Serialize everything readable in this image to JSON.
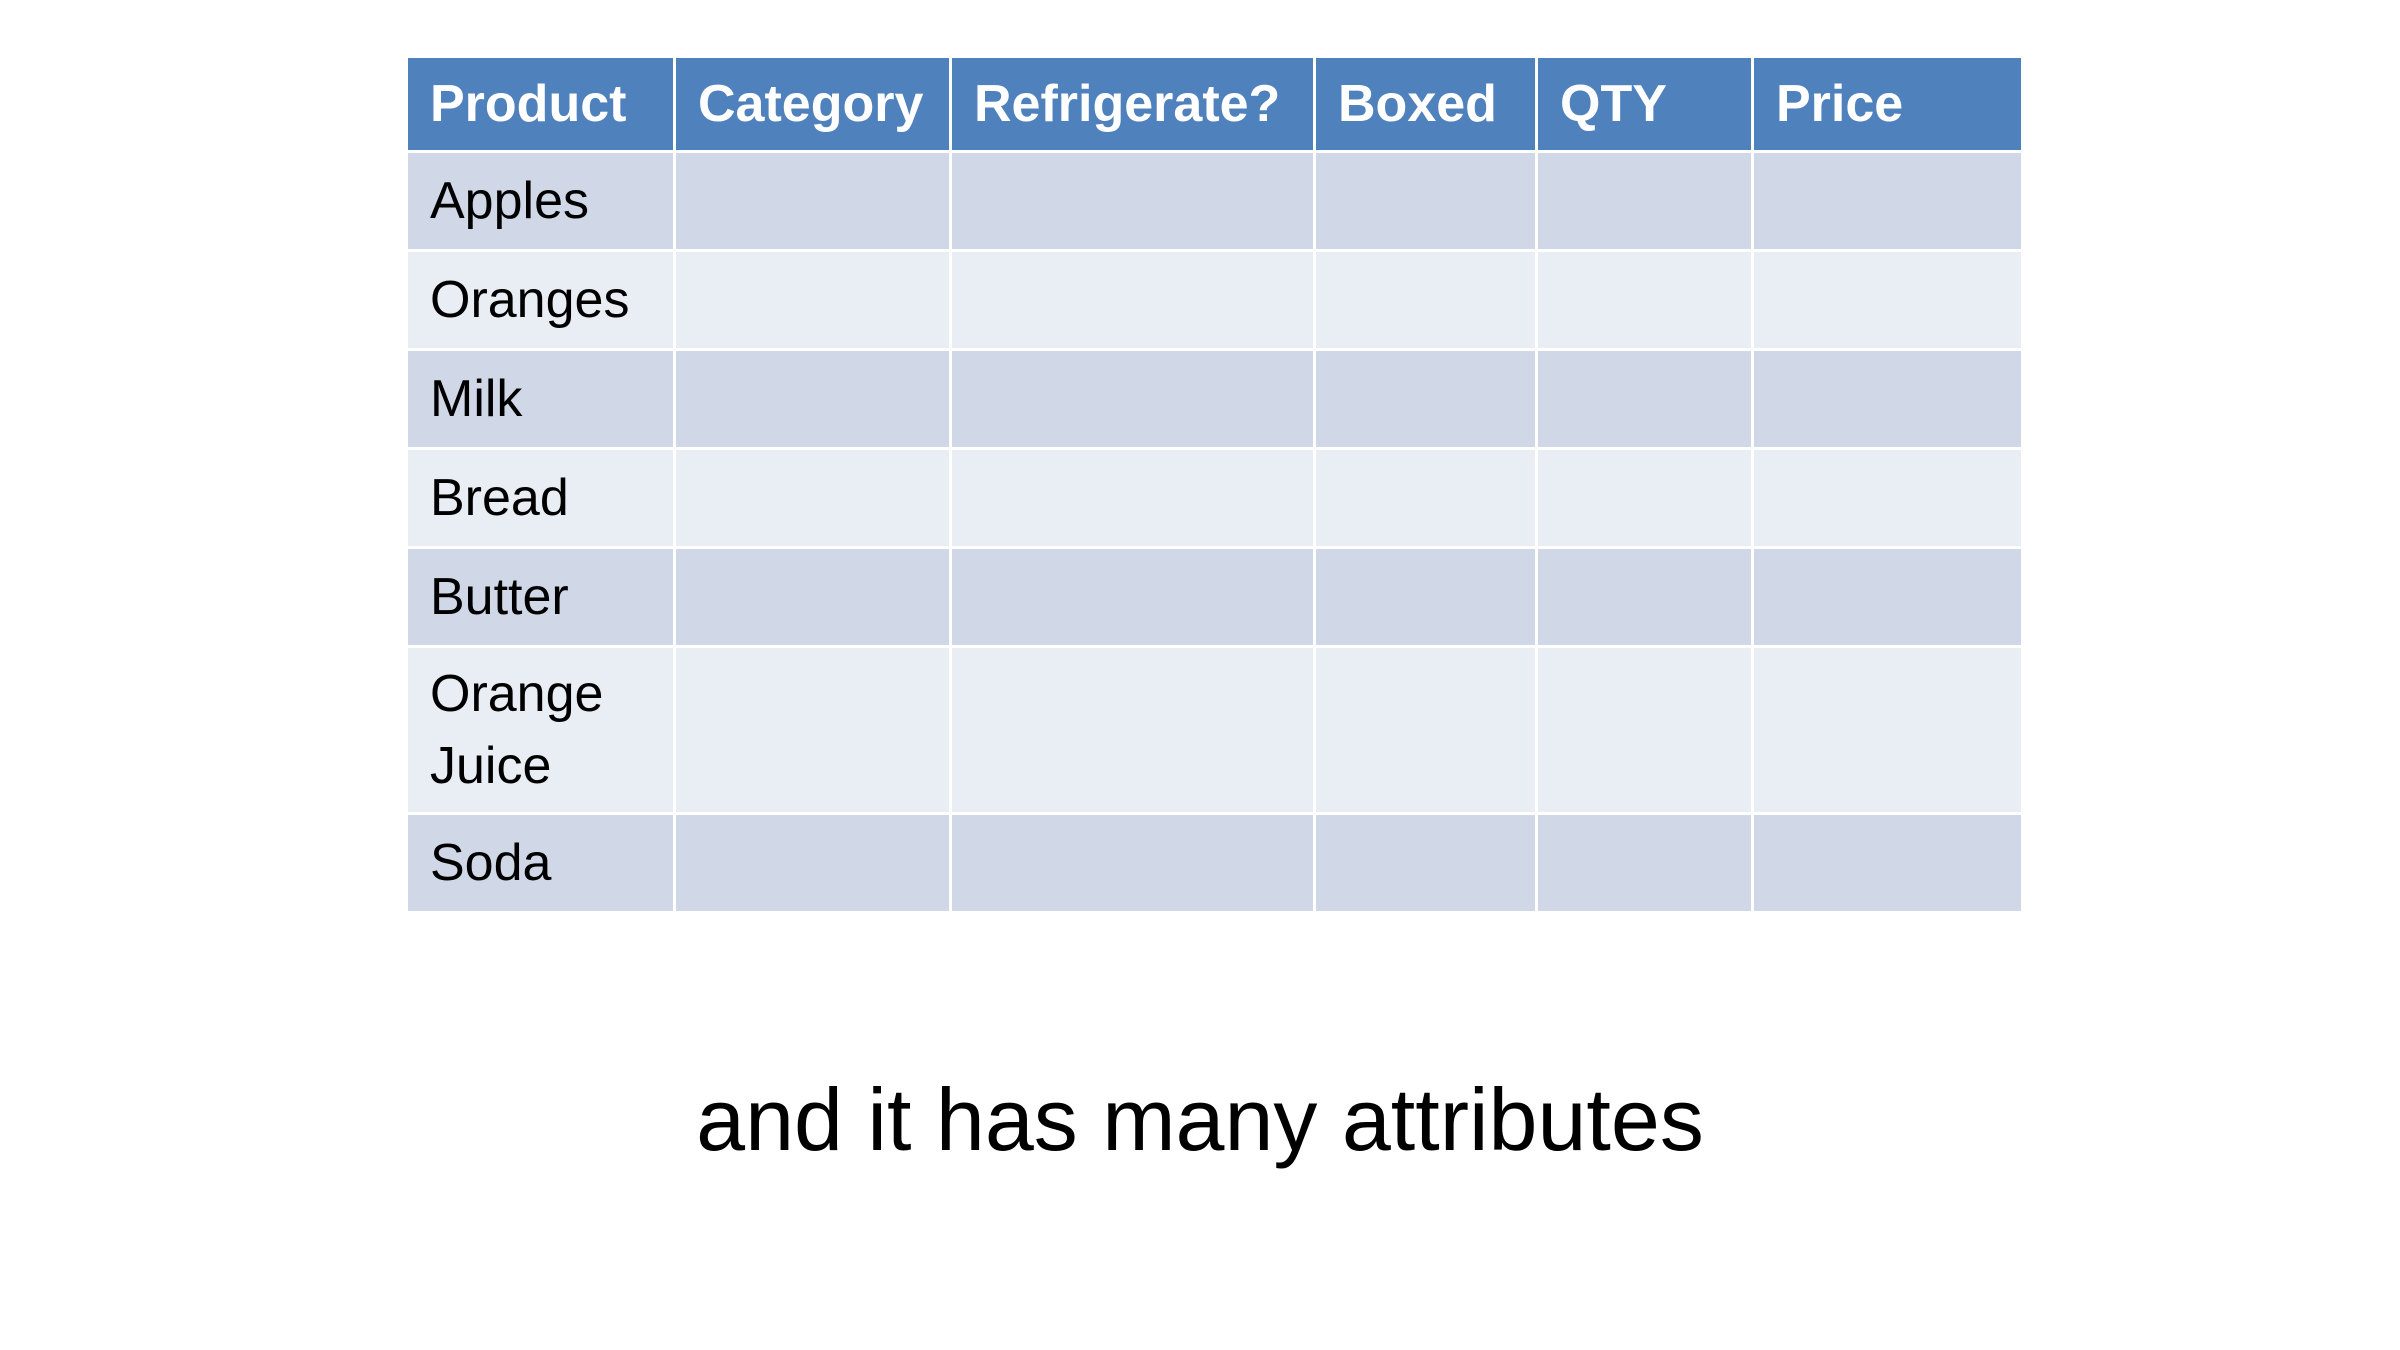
{
  "table": {
    "headers": [
      "Product",
      "Category",
      "Refrigerate?",
      "Boxed",
      "QTY",
      "Price"
    ],
    "rows": [
      [
        "Apples",
        "",
        "",
        "",
        "",
        ""
      ],
      [
        "Oranges",
        "",
        "",
        "",
        "",
        ""
      ],
      [
        "Milk",
        "",
        "",
        "",
        "",
        ""
      ],
      [
        "Bread",
        "",
        "",
        "",
        "",
        ""
      ],
      [
        "Butter",
        "",
        "",
        "",
        "",
        ""
      ],
      [
        "Orange Juice",
        "",
        "",
        "",
        "",
        ""
      ],
      [
        "Soda",
        "",
        "",
        "",
        "",
        ""
      ]
    ],
    "header_color": "#4f81bd",
    "band_dark_color": "#d0d8e8",
    "band_light_color": "#e9edf4"
  },
  "caption": "and it has many attributes"
}
